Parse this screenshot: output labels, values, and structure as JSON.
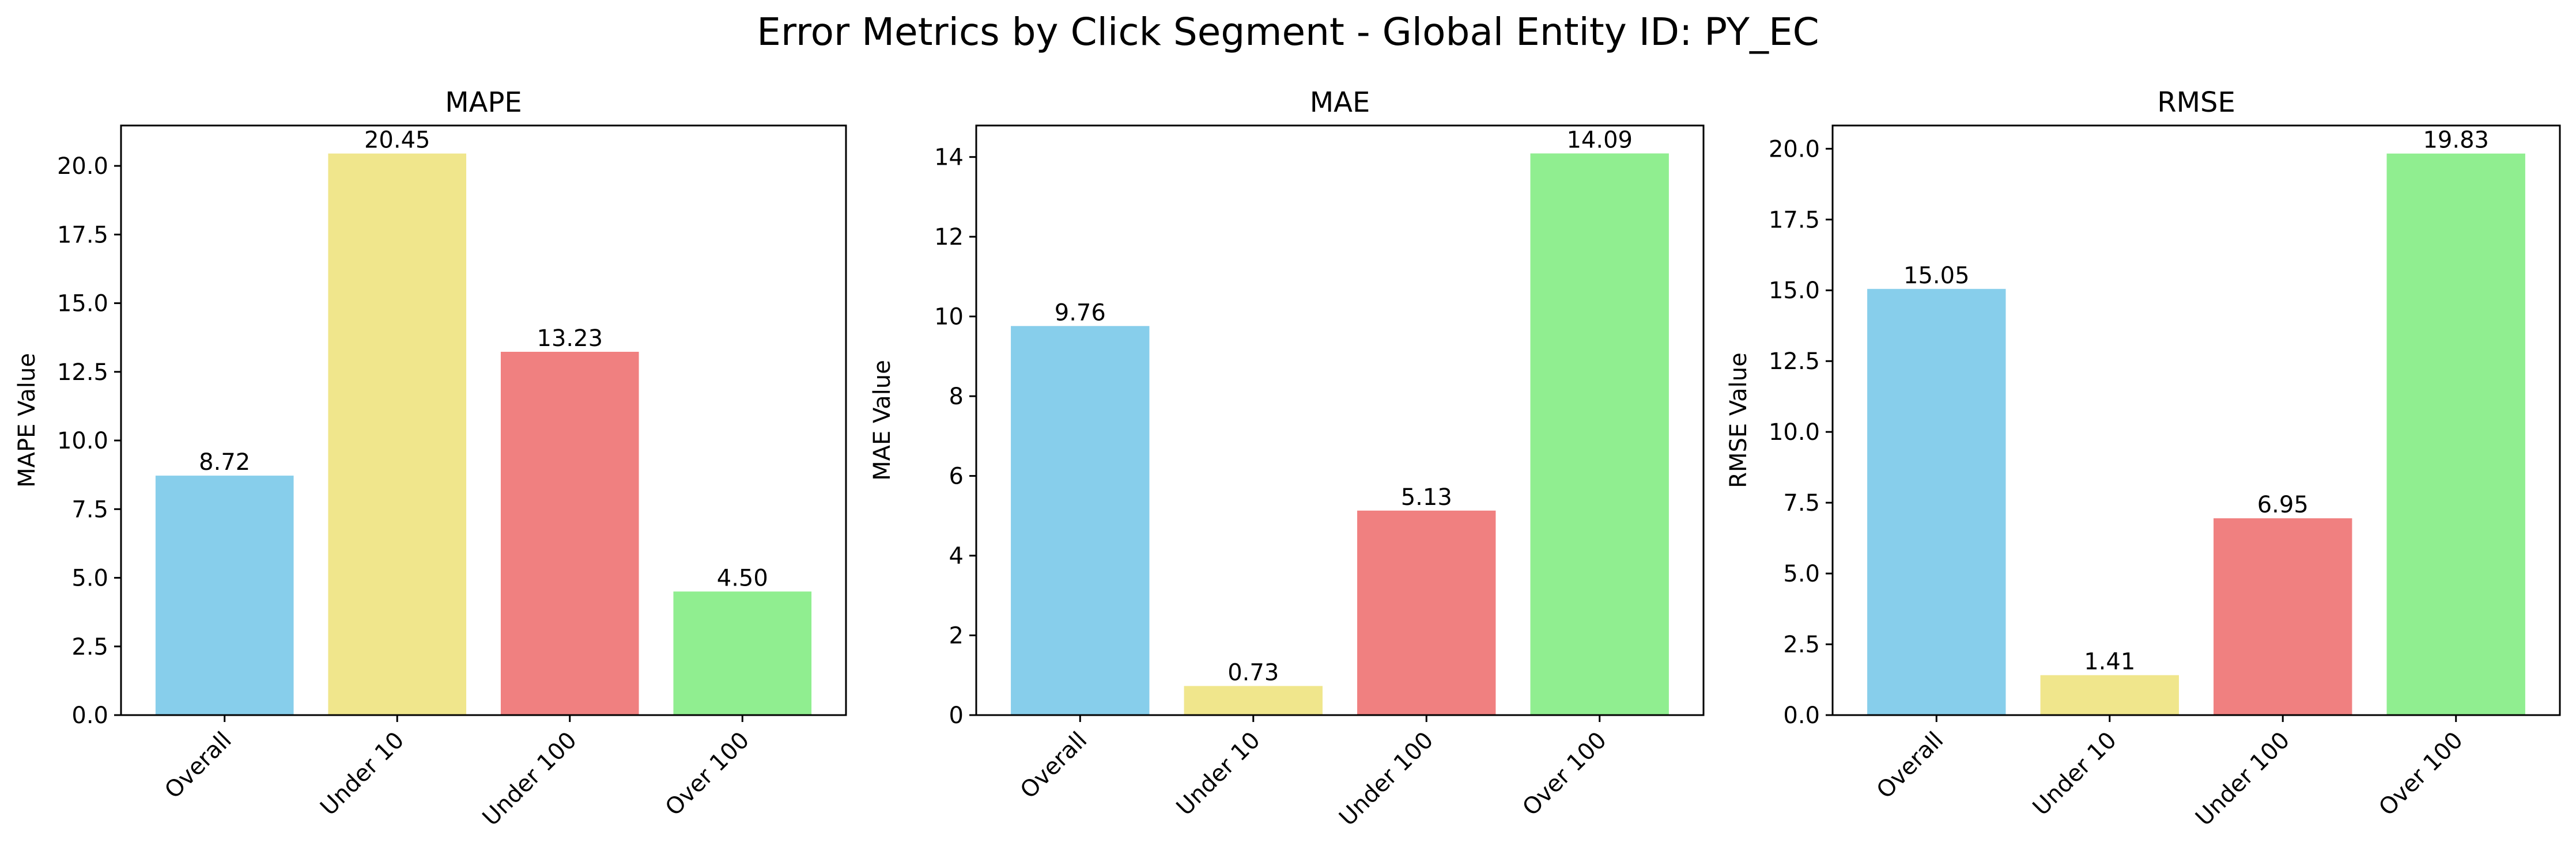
{
  "figure": {
    "title": "Error Metrics by Click Segment - Global Entity ID: PY_EC"
  },
  "colors": {
    "bars": [
      "#87CEEB",
      "#F0E68C",
      "#F08080",
      "#90EE90"
    ],
    "axis": "#000000"
  },
  "chart_data": [
    {
      "type": "bar",
      "title": "MAPE",
      "xlabel": "",
      "ylabel": "MAPE Value",
      "categories": [
        "Overall",
        "Under 10",
        "Under 100",
        "Over 100"
      ],
      "values": [
        8.72,
        20.45,
        13.23,
        4.5
      ],
      "labels": [
        "8.72",
        "20.45",
        "13.23",
        "4.50"
      ],
      "ylim": [
        0,
        21.47
      ],
      "yticks": [
        0,
        2.5,
        5,
        7.5,
        10,
        12.5,
        15,
        17.5,
        20
      ],
      "ytick_labels": [
        "0.0",
        "2.5",
        "5.0",
        "7.5",
        "10.0",
        "12.5",
        "15.0",
        "17.5",
        "20.0"
      ],
      "grid": false,
      "legend": "none"
    },
    {
      "type": "bar",
      "title": "MAE",
      "xlabel": "",
      "ylabel": "MAE Value",
      "categories": [
        "Overall",
        "Under 10",
        "Under 100",
        "Over 100"
      ],
      "values": [
        9.76,
        0.73,
        5.13,
        14.09
      ],
      "labels": [
        "9.76",
        "0.73",
        "5.13",
        "14.09"
      ],
      "ylim": [
        0,
        14.79
      ],
      "yticks": [
        0,
        2,
        4,
        6,
        8,
        10,
        12,
        14
      ],
      "ytick_labels": [
        "0",
        "2",
        "4",
        "6",
        "8",
        "10",
        "12",
        "14"
      ],
      "grid": false,
      "legend": "none"
    },
    {
      "type": "bar",
      "title": "RMSE",
      "xlabel": "",
      "ylabel": "RMSE Value",
      "categories": [
        "Overall",
        "Under 10",
        "Under 100",
        "Over 100"
      ],
      "values": [
        15.05,
        1.41,
        6.95,
        19.83
      ],
      "labels": [
        "15.05",
        "1.41",
        "6.95",
        "19.83"
      ],
      "ylim": [
        0,
        20.82
      ],
      "yticks": [
        0,
        2.5,
        5,
        7.5,
        10,
        12.5,
        15,
        17.5,
        20
      ],
      "ytick_labels": [
        "0.0",
        "2.5",
        "5.0",
        "7.5",
        "10.0",
        "12.5",
        "15.0",
        "17.5",
        "20.0"
      ],
      "grid": false,
      "legend": "none"
    }
  ]
}
